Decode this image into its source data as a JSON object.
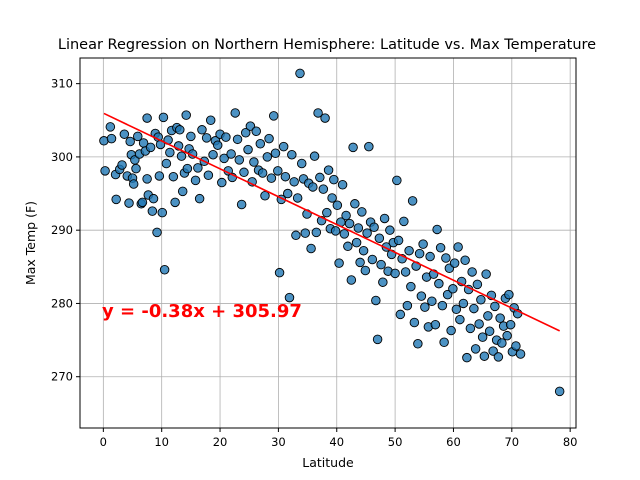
{
  "chart_data": {
    "type": "scatter",
    "title": "Linear Regression on Northern Hemisphere: Latitude vs. Max Temperature",
    "xlabel": "Latitude",
    "ylabel": "Max Temp (F)",
    "xlim": [
      -4,
      81
    ],
    "ylim": [
      263,
      313.5
    ],
    "xticks": [
      "0",
      "10",
      "20",
      "30",
      "40",
      "50",
      "60",
      "70",
      "80"
    ],
    "yticks": [
      "270",
      "280",
      "290",
      "300",
      "310"
    ],
    "grid": true,
    "point_color": "#1f77b4",
    "point_edge_color": "#000000",
    "regression": {
      "slope": -0.38,
      "intercept": 305.97,
      "x_range": [
        0.1,
        78.2
      ],
      "color": "#ff0000",
      "equation_label": "y = -0.38x + 305.97"
    },
    "points": [
      [
        0.1,
        302.2
      ],
      [
        0.3,
        298.1
      ],
      [
        1.2,
        304.1
      ],
      [
        1.4,
        302.5
      ],
      [
        2.1,
        297.6
      ],
      [
        2.2,
        294.2
      ],
      [
        2.8,
        298.3
      ],
      [
        3.2,
        298.9
      ],
      [
        3.6,
        303.1
      ],
      [
        4.1,
        297.4
      ],
      [
        4.4,
        293.7
      ],
      [
        4.6,
        302.1
      ],
      [
        4.8,
        300.3
      ],
      [
        5.0,
        297.1
      ],
      [
        5.2,
        296.3
      ],
      [
        5.4,
        299.6
      ],
      [
        5.6,
        298.4
      ],
      [
        5.9,
        302.8
      ],
      [
        6.2,
        300.4
      ],
      [
        6.5,
        293.6
      ],
      [
        6.7,
        293.8
      ],
      [
        6.9,
        301.9
      ],
      [
        7.2,
        300.8
      ],
      [
        7.5,
        305.3
      ],
      [
        7.5,
        297.0
      ],
      [
        7.7,
        294.8
      ],
      [
        8.1,
        301.3
      ],
      [
        8.4,
        292.6
      ],
      [
        8.6,
        294.3
      ],
      [
        8.9,
        303.2
      ],
      [
        9.2,
        289.7
      ],
      [
        9.4,
        302.7
      ],
      [
        9.6,
        297.4
      ],
      [
        9.8,
        301.7
      ],
      [
        10.1,
        292.4
      ],
      [
        10.3,
        305.4
      ],
      [
        10.5,
        284.6
      ],
      [
        10.8,
        299.1
      ],
      [
        11.1,
        302.3
      ],
      [
        11.4,
        300.6
      ],
      [
        11.7,
        303.6
      ],
      [
        12.0,
        297.3
      ],
      [
        12.3,
        293.8
      ],
      [
        12.6,
        304.0
      ],
      [
        12.9,
        301.5
      ],
      [
        13.1,
        303.7
      ],
      [
        13.4,
        300.1
      ],
      [
        13.6,
        295.3
      ],
      [
        13.9,
        297.8
      ],
      [
        14.2,
        305.7
      ],
      [
        14.4,
        298.4
      ],
      [
        14.7,
        301.1
      ],
      [
        15.0,
        302.8
      ],
      [
        15.3,
        300.4
      ],
      [
        15.8,
        296.8
      ],
      [
        16.2,
        298.5
      ],
      [
        16.5,
        294.3
      ],
      [
        16.9,
        303.7
      ],
      [
        17.3,
        299.4
      ],
      [
        17.7,
        302.6
      ],
      [
        18.0,
        297.5
      ],
      [
        18.4,
        305.0
      ],
      [
        18.8,
        300.3
      ],
      [
        19.2,
        302.2
      ],
      [
        19.6,
        301.6
      ],
      [
        20.0,
        303.1
      ],
      [
        20.3,
        296.5
      ],
      [
        20.7,
        299.8
      ],
      [
        21.0,
        302.7
      ],
      [
        21.4,
        298.1
      ],
      [
        21.9,
        300.4
      ],
      [
        22.1,
        297.2
      ],
      [
        22.6,
        306.0
      ],
      [
        23.0,
        302.4
      ],
      [
        23.3,
        299.6
      ],
      [
        23.7,
        293.5
      ],
      [
        24.1,
        297.9
      ],
      [
        24.4,
        303.3
      ],
      [
        24.8,
        301.0
      ],
      [
        25.2,
        304.2
      ],
      [
        25.5,
        296.6
      ],
      [
        25.8,
        299.3
      ],
      [
        26.2,
        303.5
      ],
      [
        26.6,
        298.2
      ],
      [
        26.9,
        301.8
      ],
      [
        27.3,
        297.8
      ],
      [
        27.7,
        294.7
      ],
      [
        28.1,
        300.0
      ],
      [
        28.4,
        302.5
      ],
      [
        28.8,
        297.1
      ],
      [
        29.2,
        305.6
      ],
      [
        29.5,
        300.5
      ],
      [
        29.9,
        298.1
      ],
      [
        30.2,
        284.2
      ],
      [
        30.5,
        294.2
      ],
      [
        30.9,
        301.4
      ],
      [
        31.2,
        297.3
      ],
      [
        31.6,
        295.0
      ],
      [
        31.9,
        280.8
      ],
      [
        32.3,
        300.3
      ],
      [
        32.7,
        296.6
      ],
      [
        33.0,
        289.3
      ],
      [
        33.3,
        294.4
      ],
      [
        33.7,
        311.4
      ],
      [
        34.0,
        299.1
      ],
      [
        34.3,
        297.0
      ],
      [
        34.6,
        289.6
      ],
      [
        34.9,
        292.2
      ],
      [
        35.2,
        296.4
      ],
      [
        35.6,
        287.5
      ],
      [
        35.9,
        295.9
      ],
      [
        36.2,
        300.1
      ],
      [
        36.5,
        289.7
      ],
      [
        36.8,
        306.0
      ],
      [
        37.1,
        297.2
      ],
      [
        37.4,
        291.3
      ],
      [
        37.7,
        295.6
      ],
      [
        38.0,
        305.3
      ],
      [
        38.3,
        292.4
      ],
      [
        38.6,
        298.2
      ],
      [
        38.9,
        290.2
      ],
      [
        39.2,
        294.4
      ],
      [
        39.5,
        296.9
      ],
      [
        39.8,
        289.9
      ],
      [
        40.1,
        293.4
      ],
      [
        40.4,
        285.5
      ],
      [
        40.7,
        291.1
      ],
      [
        41.0,
        296.2
      ],
      [
        41.3,
        289.5
      ],
      [
        41.6,
        292.0
      ],
      [
        41.9,
        287.8
      ],
      [
        42.2,
        290.9
      ],
      [
        42.5,
        283.2
      ],
      [
        42.8,
        301.3
      ],
      [
        43.1,
        293.6
      ],
      [
        43.4,
        288.3
      ],
      [
        43.7,
        290.3
      ],
      [
        44.0,
        285.6
      ],
      [
        44.3,
        292.5
      ],
      [
        44.6,
        287.2
      ],
      [
        44.9,
        284.5
      ],
      [
        45.2,
        289.6
      ],
      [
        45.5,
        301.4
      ],
      [
        45.8,
        291.1
      ],
      [
        46.1,
        286.0
      ],
      [
        46.4,
        290.4
      ],
      [
        46.7,
        280.4
      ],
      [
        47.0,
        275.1
      ],
      [
        47.3,
        288.9
      ],
      [
        47.6,
        285.3
      ],
      [
        47.9,
        282.9
      ],
      [
        48.2,
        291.6
      ],
      [
        48.5,
        287.7
      ],
      [
        48.8,
        284.4
      ],
      [
        49.1,
        290.0
      ],
      [
        49.4,
        286.7
      ],
      [
        49.7,
        288.3
      ],
      [
        50.0,
        284.1
      ],
      [
        50.3,
        296.8
      ],
      [
        50.6,
        288.6
      ],
      [
        50.9,
        278.5
      ],
      [
        51.2,
        286.1
      ],
      [
        51.5,
        291.2
      ],
      [
        51.8,
        284.3
      ],
      [
        52.1,
        279.7
      ],
      [
        52.4,
        287.2
      ],
      [
        52.7,
        282.3
      ],
      [
        53.0,
        294.0
      ],
      [
        53.3,
        277.4
      ],
      [
        53.6,
        285.1
      ],
      [
        53.9,
        274.5
      ],
      [
        54.2,
        286.8
      ],
      [
        54.5,
        281.0
      ],
      [
        54.8,
        288.1
      ],
      [
        55.1,
        279.5
      ],
      [
        55.4,
        283.6
      ],
      [
        55.7,
        276.8
      ],
      [
        56.0,
        286.4
      ],
      [
        56.3,
        280.3
      ],
      [
        56.6,
        284.0
      ],
      [
        56.9,
        277.1
      ],
      [
        57.2,
        290.1
      ],
      [
        57.5,
        282.7
      ],
      [
        57.8,
        287.6
      ],
      [
        58.1,
        279.7
      ],
      [
        58.4,
        274.7
      ],
      [
        58.7,
        286.2
      ],
      [
        59.0,
        281.2
      ],
      [
        59.3,
        284.8
      ],
      [
        59.6,
        276.3
      ],
      [
        59.9,
        282.0
      ],
      [
        60.2,
        285.5
      ],
      [
        60.5,
        279.2
      ],
      [
        60.8,
        287.7
      ],
      [
        61.1,
        277.8
      ],
      [
        61.4,
        283.0
      ],
      [
        61.7,
        280.0
      ],
      [
        62.0,
        285.9
      ],
      [
        62.3,
        272.6
      ],
      [
        62.6,
        281.9
      ],
      [
        62.9,
        276.6
      ],
      [
        63.2,
        284.3
      ],
      [
        63.5,
        279.3
      ],
      [
        63.8,
        273.8
      ],
      [
        64.1,
        282.6
      ],
      [
        64.4,
        277.2
      ],
      [
        64.7,
        280.5
      ],
      [
        65.0,
        275.4
      ],
      [
        65.3,
        272.8
      ],
      [
        65.6,
        284.0
      ],
      [
        65.9,
        278.3
      ],
      [
        66.2,
        276.2
      ],
      [
        66.5,
        281.1
      ],
      [
        66.8,
        273.5
      ],
      [
        67.1,
        279.6
      ],
      [
        67.4,
        275.0
      ],
      [
        67.7,
        272.7
      ],
      [
        68.0,
        278.0
      ],
      [
        68.3,
        274.6
      ],
      [
        68.6,
        276.9
      ],
      [
        68.9,
        280.7
      ],
      [
        69.2,
        275.6
      ],
      [
        69.5,
        281.2
      ],
      [
        69.8,
        277.1
      ],
      [
        70.1,
        273.4
      ],
      [
        70.4,
        279.4
      ],
      [
        70.7,
        274.2
      ],
      [
        71.0,
        278.6
      ],
      [
        71.5,
        273.1
      ],
      [
        78.2,
        268.0
      ]
    ]
  }
}
